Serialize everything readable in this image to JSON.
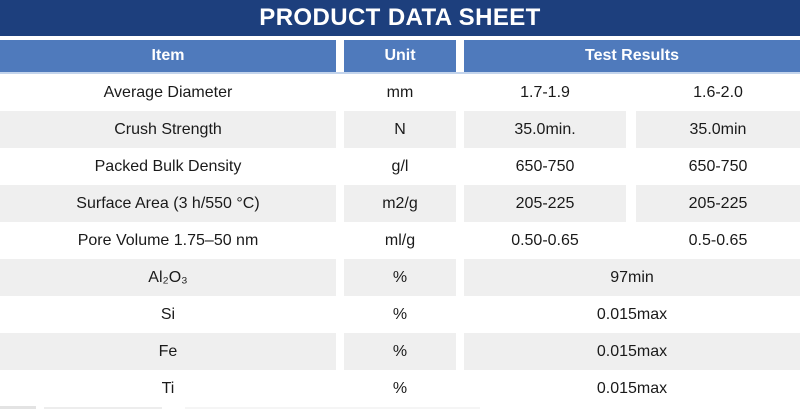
{
  "title": "PRODUCT DATA SHEET",
  "table": {
    "columns": [
      "Item",
      "Unit",
      "Test Results"
    ],
    "rows": [
      {
        "item": "Average Diameter",
        "unit": "mm",
        "results": [
          "1.7-1.9",
          "1.6-2.0"
        ]
      },
      {
        "item": "Crush Strength",
        "unit": "N",
        "results": [
          "35.0min.",
          "35.0min"
        ]
      },
      {
        "item": "Packed Bulk Density",
        "unit": "g/l",
        "results": [
          "650-750",
          "650-750"
        ]
      },
      {
        "item": "Surface Area (3 h/550 °C)",
        "unit": "m2/g",
        "results": [
          "205-225",
          "205-225"
        ]
      },
      {
        "item": "Pore Volume 1.75–50 nm",
        "unit": "ml/g",
        "results": [
          "0.50-0.65",
          "0.5-0.65"
        ]
      },
      {
        "item": "Al₂O₃",
        "unit": "%",
        "results": [
          "97min"
        ]
      },
      {
        "item": "Si",
        "unit": "%",
        "results": [
          "0.015max"
        ]
      },
      {
        "item": "Fe",
        "unit": "%",
        "results": [
          "0.015max"
        ]
      },
      {
        "item": "Ti",
        "unit": "%",
        "results": [
          "0.015max"
        ]
      }
    ]
  },
  "colors": {
    "title_bar_bg": "#1d3f7d",
    "header_bg": "#4f7abc",
    "shaded_row_bg": "#efefef",
    "header_text": "#ffffff",
    "body_text": "#1a1a1a",
    "header_underline": "#c3d4ec"
  }
}
